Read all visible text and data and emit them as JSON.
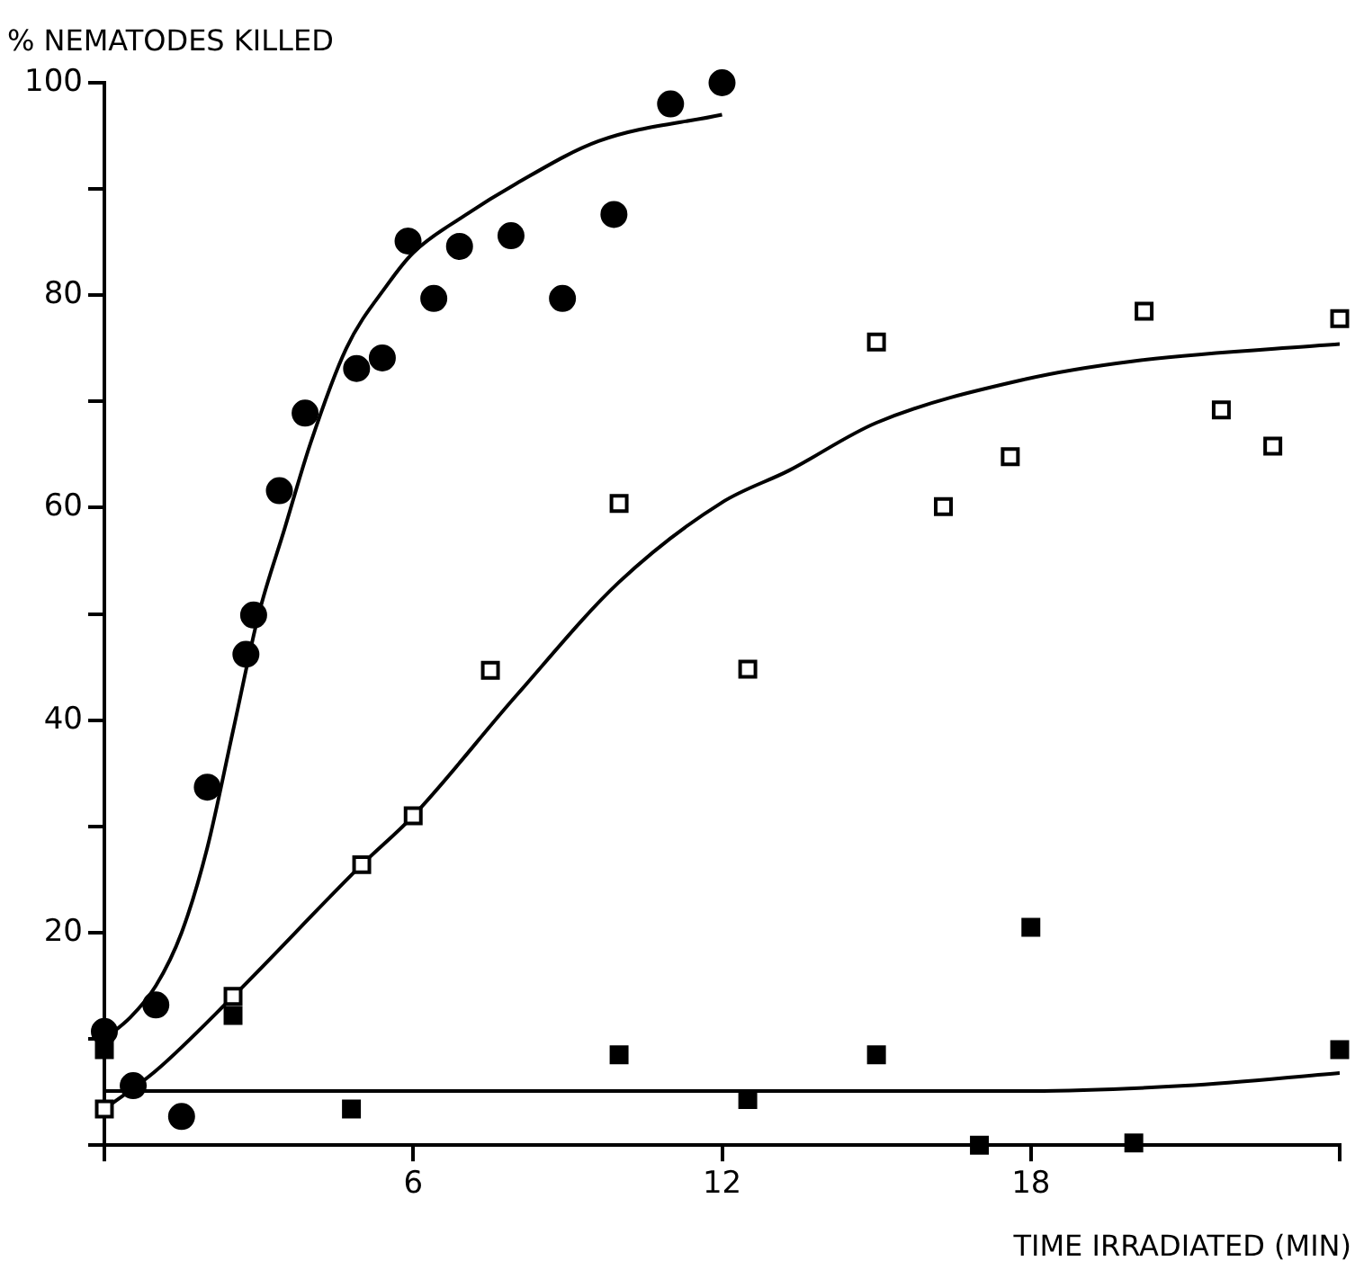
{
  "chart_data": {
    "type": "scatter",
    "xlabel": "TIME IRRADIATED (MIN)",
    "ylabel": "% NEMATODES KILLED",
    "xlim": [
      0,
      24
    ],
    "ylim": [
      0,
      100
    ],
    "xticks": [
      {
        "value": 0,
        "label": null
      },
      6,
      12,
      18,
      {
        "value": 24,
        "label": null
      }
    ],
    "yticks": [
      {
        "value": 0,
        "label": null
      },
      {
        "value": 10,
        "label": null
      },
      20,
      {
        "value": 30,
        "label": null
      },
      40,
      {
        "value": 50,
        "label": null
      },
      60,
      {
        "value": 70,
        "label": null
      },
      80,
      {
        "value": 90,
        "label": null
      },
      100
    ],
    "grid": false,
    "legend": false,
    "series": [
      {
        "type": "scatter",
        "color": "#000000",
        "marker": "circle",
        "x": [
          0,
          0.56,
          1,
          1.5,
          2,
          2.75,
          2.9,
          3.4,
          3.9,
          4.9,
          5.4,
          5.9,
          6.4,
          6.9,
          7.9,
          8.9,
          9.9,
          11,
          12
        ],
        "values": [
          10.7,
          5.6,
          13.2,
          2.7,
          33.7,
          46.2,
          49.9,
          61.6,
          68.9,
          73.1,
          74.1,
          85.1,
          79.7,
          84.6,
          85.6,
          79.7,
          87.6,
          98,
          100
        ]
      },
      {
        "type": "scatter",
        "color": "#ffffff",
        "marker": "square",
        "x": [
          0,
          2.5,
          5,
          6,
          7.5,
          10,
          12.5,
          15,
          16.3,
          17.6,
          20.2,
          21.7,
          22.7,
          24
        ],
        "values": [
          3.4,
          14,
          26.4,
          31,
          44.7,
          60.4,
          44.8,
          75.6,
          60.1,
          64.8,
          78.5,
          69.2,
          65.8,
          77.8
        ]
      },
      {
        "type": "scatter",
        "color": "#000000",
        "marker": "square",
        "x": [
          0,
          2.5,
          4.8,
          10,
          12.5,
          15,
          17,
          18,
          20,
          24
        ],
        "values": [
          9,
          12.2,
          3.4,
          8.5,
          4.3,
          8.5,
          0,
          20.5,
          0.2,
          9
        ]
      },
      {
        "type": "line",
        "color": "#000000",
        "marker": "none",
        "line_style": "solid",
        "x": [
          0,
          0.5,
          1,
          1.5,
          2,
          2.5,
          3,
          3.5,
          4,
          4.7,
          5.5,
          6,
          7,
          8,
          9.6,
          12
        ],
        "values": [
          10,
          12,
          15,
          20,
          28,
          39,
          50,
          58,
          66,
          75,
          81,
          84,
          87.5,
          90.5,
          94.5,
          97
        ]
      },
      {
        "type": "line",
        "color": "#000000",
        "marker": "none",
        "line_style": "solid",
        "x": [
          0,
          1,
          2.5,
          5,
          6,
          8,
          10,
          12,
          13.3,
          15,
          17.9,
          20,
          23.7,
          24
        ],
        "values": [
          3.4,
          7,
          14,
          26.4,
          31,
          42.3,
          53,
          60.5,
          63.5,
          68,
          72.1,
          73.8,
          75.3,
          75.4
        ]
      },
      {
        "type": "line",
        "color": "#000000",
        "marker": "none",
        "line_style": "solid",
        "x": [
          0,
          6,
          12,
          18,
          21,
          24
        ],
        "values": [
          5.1,
          5.1,
          5.1,
          5.1,
          5.6,
          6.8
        ]
      }
    ]
  }
}
